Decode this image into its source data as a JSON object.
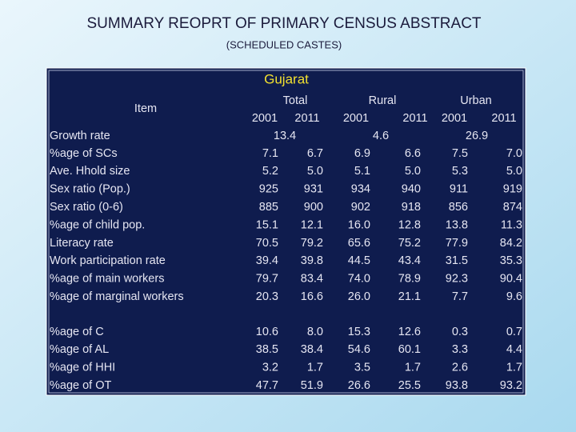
{
  "header": {
    "title": "SUMMARY REOPRT OF PRIMARY CENSUS ABSTRACT",
    "subtitle": "(SCHEDULED CASTES)"
  },
  "table": {
    "region": "Gujarat",
    "item_header": "Item",
    "groups": [
      {
        "name": "Total",
        "years": [
          "2001",
          "2011"
        ]
      },
      {
        "name": "Rural",
        "years": [
          "2001",
          "2011"
        ]
      },
      {
        "name": "Urban",
        "years": [
          "2001",
          "2011"
        ]
      }
    ],
    "growth": {
      "label": "Growth rate",
      "values": [
        "13.4",
        "4.6",
        "26.9"
      ]
    },
    "rows": [
      [
        "%age of SCs",
        "7.1",
        "6.7",
        "6.9",
        "6.6",
        "7.5",
        "7.0"
      ],
      [
        "Ave. Hhold size",
        "5.2",
        "5.0",
        "5.1",
        "5.0",
        "5.3",
        "5.0"
      ],
      [
        "Sex ratio (Pop.)",
        "925",
        "931",
        "934",
        "940",
        "911",
        "919"
      ],
      [
        "Sex ratio (0-6)",
        "885",
        "900",
        "902",
        "918",
        "856",
        "874"
      ],
      [
        "%age of child pop.",
        "15.1",
        "12.1",
        "16.0",
        "12.8",
        "13.8",
        "11.3"
      ],
      [
        "Literacy rate",
        "70.5",
        "79.2",
        "65.6",
        "75.2",
        "77.9",
        "84.2"
      ],
      [
        "Work participation rate",
        "39.4",
        "39.8",
        "44.5",
        "43.4",
        "31.5",
        "35.3"
      ],
      [
        "%age of main workers",
        "79.7",
        "83.4",
        "74.0",
        "78.9",
        "92.3",
        "90.4"
      ],
      [
        "%age of marginal workers",
        "20.3",
        "16.6",
        "26.0",
        "21.1",
        "7.7",
        "9.6"
      ]
    ],
    "worker_rows": [
      [
        "%age of C",
        "10.6",
        "8.0",
        "15.3",
        "12.6",
        "0.3",
        "0.7"
      ],
      [
        "%age of AL",
        "38.5",
        "38.4",
        "54.6",
        "60.1",
        "3.3",
        "4.4"
      ],
      [
        "%age of HHI",
        "3.2",
        "1.7",
        "3.5",
        "1.7",
        "2.6",
        "1.7"
      ],
      [
        "%age of OT",
        "47.7",
        "51.9",
        "26.6",
        "25.5",
        "93.8",
        "93.2"
      ]
    ]
  }
}
